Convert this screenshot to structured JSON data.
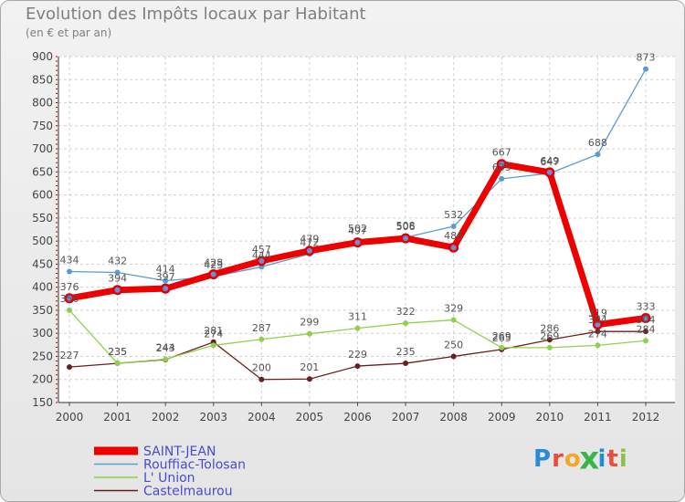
{
  "title": "Evolution des Impôts locaux par Habitant",
  "subtitle": "(en € et par an)",
  "logo": {
    "text": [
      "P",
      "r",
      "o",
      "x",
      "i",
      "t",
      "i"
    ],
    "colors": [
      "#2a8ad8",
      "#e94d3c",
      "#f5a623",
      "#3bb54a",
      "#1e90d0",
      "#e94d3c",
      "#8bc34a"
    ]
  },
  "chart_data": {
    "type": "line",
    "title": "Evolution des Impôts locaux par Habitant",
    "subtitle": "(en € et par an)",
    "xlabel": "",
    "ylabel": "",
    "x": [
      "2000",
      "2001",
      "2002",
      "2003",
      "2004",
      "2005",
      "2006",
      "2007",
      "2008",
      "2009",
      "2010",
      "2011",
      "2012"
    ],
    "ylim": [
      150,
      900
    ],
    "yticks": [
      150,
      200,
      250,
      300,
      350,
      400,
      450,
      500,
      550,
      600,
      650,
      700,
      750,
      800,
      850,
      900
    ],
    "grid": true,
    "legend_position": "bottom-left",
    "series": [
      {
        "name": "Castelmaurou",
        "color": "#6b1e1e",
        "width": 1.3,
        "values": [
          227,
          235,
          243,
          281,
          200,
          201,
          229,
          235,
          250,
          265,
          286,
          304,
          304
        ]
      },
      {
        "name": "L' Union",
        "color": "#8fd14f",
        "width": 1.3,
        "values": [
          350,
          235,
          244,
          274,
          287,
          299,
          311,
          322,
          329,
          269,
          269,
          274,
          284
        ]
      },
      {
        "name": "Rouffiac-Tolosan",
        "color": "#5a9bd4",
        "width": 1.3,
        "values": [
          434,
          432,
          414,
          423,
          444,
          472,
          502,
          508,
          532,
          635,
          647,
          688,
          873
        ]
      },
      {
        "name": "SAINT-JEAN",
        "color": "#ee0000",
        "width": 7,
        "values": [
          376,
          394,
          397,
          428,
          457,
          479,
          497,
          506,
          486,
          667,
          649,
          319,
          333
        ]
      }
    ],
    "legend_order": [
      "SAINT-JEAN",
      "Rouffiac-Tolosan",
      "L' Union",
      "Castelmaurou"
    ]
  }
}
